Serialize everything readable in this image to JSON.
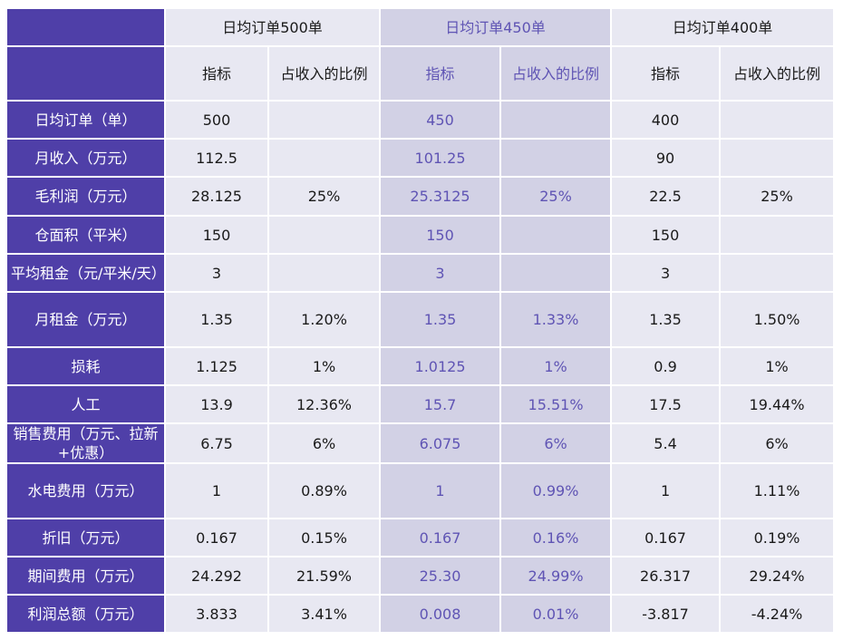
{
  "table": {
    "scenarios": [
      "日均订单500单",
      "日均订单450单",
      "日均订单400单"
    ],
    "subheaders": [
      "指标",
      "占收入的比例",
      "指标",
      "占收入的比例",
      "指标",
      "占收入的比例"
    ],
    "rows": [
      {
        "label": "日均订单（单）",
        "cells": [
          "500",
          "",
          "450",
          "",
          "400",
          ""
        ]
      },
      {
        "label": "月收入（万元）",
        "cells": [
          "112.5",
          "",
          "101.25",
          "",
          "90",
          ""
        ]
      },
      {
        "label": "毛利润（万元）",
        "cells": [
          "28.125",
          "25%",
          "25.3125",
          "25%",
          "22.5",
          "25%"
        ]
      },
      {
        "label": "仓面积（平米）",
        "cells": [
          "150",
          "",
          "150",
          "",
          "150",
          ""
        ]
      },
      {
        "label": "平均租金（元/平米/天）",
        "cells": [
          "3",
          "",
          "3",
          "",
          "3",
          ""
        ]
      },
      {
        "label": "月租金（万元）",
        "cells": [
          "1.35",
          "1.20%",
          "1.35",
          "1.33%",
          "1.35",
          "1.50%"
        ]
      },
      {
        "label": "损耗",
        "cells": [
          "1.125",
          "1%",
          "1.0125",
          "1%",
          "0.9",
          "1%"
        ]
      },
      {
        "label": "人工",
        "cells": [
          "13.9",
          "12.36%",
          "15.7",
          "15.51%",
          "17.5",
          "19.44%"
        ]
      },
      {
        "label": "销售费用（万元、拉新+优惠）",
        "cells": [
          "6.75",
          "6%",
          "6.075",
          "6%",
          "5.4",
          "6%"
        ]
      },
      {
        "label": "水电费用（万元）",
        "cells": [
          "1",
          "0.89%",
          "1",
          "0.99%",
          "1",
          "1.11%"
        ]
      },
      {
        "label": "折旧（万元）",
        "cells": [
          "0.167",
          "0.15%",
          "0.167",
          "0.16%",
          "0.167",
          "0.19%"
        ]
      },
      {
        "label": "期间费用（万元）",
        "cells": [
          "24.292",
          "21.59%",
          "25.30",
          "24.99%",
          "26.317",
          "29.24%"
        ]
      },
      {
        "label": "利润总额（万元）",
        "cells": [
          "3.833",
          "3.41%",
          "0.008",
          "0.01%",
          "-3.817",
          "-4.24%"
        ]
      }
    ]
  },
  "colors": {
    "rowhead_bg": "#4f3fa8",
    "scenario_bg": "#e8e8f2",
    "highlight_bg": "#d2d1e5",
    "highlight_text": "#5f54b4"
  }
}
